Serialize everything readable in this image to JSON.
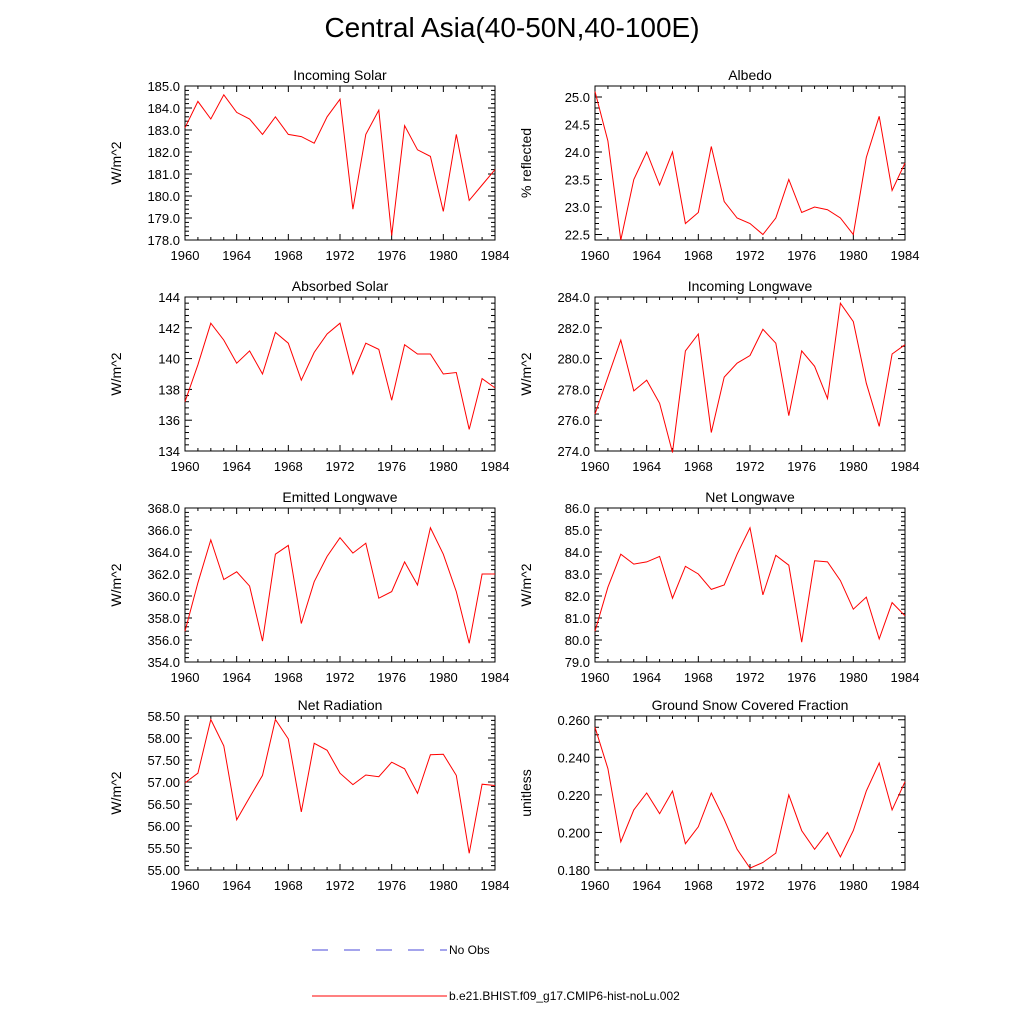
{
  "title": "Central Asia(40-50N,40-100E)",
  "legend": {
    "obs_label": "No Obs",
    "obs_color": "#4a4ad8",
    "model_label": "b.e21.BHIST.f09_g17.CMIP6-hist-noLu.002",
    "model_color": "#ff0000"
  },
  "chart_data": [
    {
      "type": "line",
      "title": "Incoming Solar",
      "ylabel": "W/m^2",
      "xlim": [
        1960,
        1984
      ],
      "ylim": [
        178.0,
        185.0
      ],
      "xticks": [
        "1960",
        "1964",
        "1968",
        "1972",
        "1976",
        "1980",
        "1984"
      ],
      "yticks": [
        "178.0",
        "179.0",
        "180.0",
        "181.0",
        "182.0",
        "183.0",
        "184.0",
        "185.0"
      ],
      "x": [
        1960,
        1961,
        1962,
        1963,
        1964,
        1965,
        1966,
        1967,
        1968,
        1969,
        1970,
        1971,
        1972,
        1973,
        1974,
        1975,
        1976,
        1977,
        1978,
        1979,
        1980,
        1981,
        1982,
        1983,
        1984
      ],
      "series": [
        {
          "values": [
            183.1,
            184.3,
            183.5,
            184.6,
            183.8,
            183.5,
            182.8,
            183.6,
            182.8,
            182.7,
            182.4,
            183.6,
            184.4,
            179.4,
            182.8,
            183.9,
            178.2,
            183.2,
            182.1,
            181.8,
            179.3,
            182.8,
            179.8,
            180.5,
            181.2
          ]
        }
      ]
    },
    {
      "type": "line",
      "title": "Albedo",
      "ylabel": "% reflected",
      "xlim": [
        1960,
        1984
      ],
      "ylim": [
        22.4,
        25.2
      ],
      "xticks": [
        "1960",
        "1964",
        "1968",
        "1972",
        "1976",
        "1980",
        "1984"
      ],
      "yticks": [
        "22.5",
        "23.0",
        "23.5",
        "24.0",
        "24.5",
        "25.0"
      ],
      "x": [
        1960,
        1961,
        1962,
        1963,
        1964,
        1965,
        1966,
        1967,
        1968,
        1969,
        1970,
        1971,
        1972,
        1973,
        1974,
        1975,
        1976,
        1977,
        1978,
        1979,
        1980,
        1981,
        1982,
        1983,
        1984
      ],
      "series": [
        {
          "values": [
            25.1,
            24.2,
            22.4,
            23.5,
            24.0,
            23.4,
            24.0,
            22.7,
            22.9,
            24.1,
            23.1,
            22.8,
            22.7,
            22.5,
            22.8,
            23.5,
            22.9,
            23.0,
            22.95,
            22.8,
            22.5,
            23.9,
            24.65,
            23.3,
            23.8
          ]
        }
      ]
    },
    {
      "type": "line",
      "title": "Absorbed Solar",
      "ylabel": "W/m^2",
      "xlim": [
        1960,
        1984
      ],
      "ylim": [
        134,
        144
      ],
      "xticks": [
        "1960",
        "1964",
        "1968",
        "1972",
        "1976",
        "1980",
        "1984"
      ],
      "yticks": [
        "134",
        "136",
        "138",
        "140",
        "142",
        "144"
      ],
      "x": [
        1960,
        1961,
        1962,
        1963,
        1964,
        1965,
        1966,
        1967,
        1968,
        1969,
        1970,
        1971,
        1972,
        1973,
        1974,
        1975,
        1976,
        1977,
        1978,
        1979,
        1980,
        1981,
        1982,
        1983,
        1984
      ],
      "series": [
        {
          "values": [
            137.2,
            139.6,
            142.3,
            141.2,
            139.7,
            140.5,
            139.0,
            141.7,
            141.0,
            138.6,
            140.4,
            141.6,
            142.3,
            139.0,
            141.0,
            140.6,
            137.3,
            140.9,
            140.3,
            140.3,
            139.0,
            139.1,
            135.4,
            138.7,
            138.1
          ]
        }
      ]
    },
    {
      "type": "line",
      "title": "Incoming Longwave",
      "ylabel": "W/m^2",
      "xlim": [
        1960,
        1984
      ],
      "ylim": [
        274.0,
        284.0
      ],
      "xticks": [
        "1960",
        "1964",
        "1968",
        "1972",
        "1976",
        "1980",
        "1984"
      ],
      "yticks": [
        "274.0",
        "276.0",
        "278.0",
        "280.0",
        "282.0",
        "284.0"
      ],
      "x": [
        1960,
        1961,
        1962,
        1963,
        1964,
        1965,
        1966,
        1967,
        1968,
        1969,
        1970,
        1971,
        1972,
        1973,
        1974,
        1975,
        1976,
        1977,
        1978,
        1979,
        1980,
        1981,
        1982,
        1983,
        1984
      ],
      "series": [
        {
          "values": [
            276.4,
            278.8,
            281.2,
            277.9,
            278.6,
            277.1,
            273.9,
            280.5,
            281.6,
            275.2,
            278.8,
            279.7,
            280.2,
            281.9,
            281.0,
            276.3,
            280.5,
            279.5,
            277.4,
            283.6,
            282.4,
            278.4,
            275.6,
            280.3,
            280.9
          ]
        }
      ]
    },
    {
      "type": "line",
      "title": "Emitted Longwave",
      "ylabel": "W/m^2",
      "xlim": [
        1960,
        1984
      ],
      "ylim": [
        354.0,
        368.0
      ],
      "xticks": [
        "1960",
        "1964",
        "1968",
        "1972",
        "1976",
        "1980",
        "1984"
      ],
      "yticks": [
        "354.0",
        "356.0",
        "358.0",
        "360.0",
        "362.0",
        "364.0",
        "366.0",
        "368.0"
      ],
      "x": [
        1960,
        1961,
        1962,
        1963,
        1964,
        1965,
        1966,
        1967,
        1968,
        1969,
        1970,
        1971,
        1972,
        1973,
        1974,
        1975,
        1976,
        1977,
        1978,
        1979,
        1980,
        1981,
        1982,
        1983,
        1984
      ],
      "series": [
        {
          "values": [
            356.8,
            361.2,
            365.1,
            361.5,
            362.2,
            360.9,
            355.9,
            363.8,
            364.6,
            357.5,
            361.3,
            363.6,
            365.3,
            363.9,
            364.8,
            359.8,
            360.4,
            363.1,
            361.0,
            366.2,
            363.8,
            360.4,
            355.7,
            362.0,
            362.0
          ]
        }
      ]
    },
    {
      "type": "line",
      "title": "Net Longwave",
      "ylabel": "W/m^2",
      "xlim": [
        1960,
        1984
      ],
      "ylim": [
        79.0,
        86.0
      ],
      "xticks": [
        "1960",
        "1964",
        "1968",
        "1972",
        "1976",
        "1980",
        "1984"
      ],
      "yticks": [
        "79.0",
        "80.0",
        "81.0",
        "82.0",
        "83.0",
        "84.0",
        "85.0",
        "86.0"
      ],
      "x": [
        1960,
        1961,
        1962,
        1963,
        1964,
        1965,
        1966,
        1967,
        1968,
        1969,
        1970,
        1971,
        1972,
        1973,
        1974,
        1975,
        1976,
        1977,
        1978,
        1979,
        1980,
        1981,
        1982,
        1983,
        1984
      ],
      "series": [
        {
          "values": [
            80.4,
            82.4,
            83.9,
            83.45,
            83.55,
            83.8,
            81.9,
            83.35,
            83.0,
            82.3,
            82.5,
            83.9,
            85.1,
            82.05,
            83.85,
            83.4,
            79.9,
            83.6,
            83.55,
            82.7,
            81.4,
            81.95,
            80.05,
            81.7,
            81.1
          ]
        }
      ]
    },
    {
      "type": "line",
      "title": "Net Radiation",
      "ylabel": "W/m^2",
      "xlim": [
        1960,
        1984
      ],
      "ylim": [
        55.0,
        58.5
      ],
      "xticks": [
        "1960",
        "1964",
        "1968",
        "1972",
        "1976",
        "1980",
        "1984"
      ],
      "yticks": [
        "55.00",
        "55.50",
        "56.00",
        "56.50",
        "57.00",
        "57.50",
        "58.00",
        "58.50"
      ],
      "x": [
        1960,
        1961,
        1962,
        1963,
        1964,
        1965,
        1966,
        1967,
        1968,
        1969,
        1970,
        1971,
        1972,
        1973,
        1974,
        1975,
        1976,
        1977,
        1978,
        1979,
        1980,
        1981,
        1982,
        1983,
        1984
      ],
      "series": [
        {
          "values": [
            56.98,
            57.2,
            58.42,
            57.82,
            56.14,
            56.65,
            57.15,
            58.42,
            57.98,
            56.32,
            57.88,
            57.72,
            57.2,
            56.94,
            57.16,
            57.12,
            57.45,
            57.3,
            56.74,
            57.62,
            57.63,
            57.15,
            55.38,
            56.95,
            56.92
          ]
        }
      ]
    },
    {
      "type": "line",
      "title": "Ground Snow Covered Fraction",
      "ylabel": "unitless",
      "xlim": [
        1960,
        1984
      ],
      "ylim": [
        0.18,
        0.262
      ],
      "xticks": [
        "1960",
        "1964",
        "1968",
        "1972",
        "1976",
        "1980",
        "1984"
      ],
      "yticks": [
        "0.180",
        "0.200",
        "0.220",
        "0.240",
        "0.260"
      ],
      "x": [
        1960,
        1961,
        1962,
        1963,
        1964,
        1965,
        1966,
        1967,
        1968,
        1969,
        1970,
        1971,
        1972,
        1973,
        1974,
        1975,
        1976,
        1977,
        1978,
        1979,
        1980,
        1981,
        1982,
        1983,
        1984
      ],
      "series": [
        {
          "values": [
            0.256,
            0.234,
            0.195,
            0.212,
            0.221,
            0.21,
            0.222,
            0.194,
            0.203,
            0.221,
            0.207,
            0.191,
            0.181,
            0.184,
            0.189,
            0.22,
            0.201,
            0.191,
            0.2,
            0.187,
            0.201,
            0.222,
            0.237,
            0.212,
            0.227
          ]
        }
      ]
    }
  ]
}
